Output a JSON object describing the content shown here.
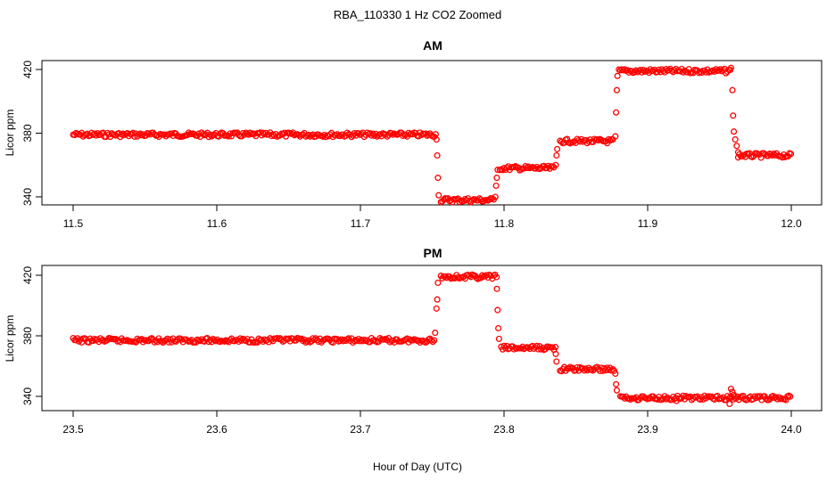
{
  "figure": {
    "title": "RBA_110330  1 Hz CO2 Zoomed",
    "xlabel": "Hour of Day (UTC)"
  },
  "chart_data": [
    {
      "type": "scatter",
      "title": "AM",
      "ylabel": "Licor ppm",
      "xlabel": "Hour of Day (UTC)",
      "xlim": [
        11.5,
        12.0
      ],
      "ylim": [
        334,
        424
      ],
      "xticks": [
        11.5,
        11.6,
        11.7,
        11.8,
        11.9,
        12.0
      ],
      "xtick_labels": [
        "11.5",
        "11.6",
        "11.7",
        "11.8",
        "11.9",
        "12.0"
      ],
      "yticks": [
        340,
        380,
        420
      ],
      "ytick_labels": [
        "340",
        "380",
        "420"
      ],
      "grid": false,
      "marker": "open-circle",
      "color": "#ff0000",
      "segments": [
        {
          "x0": 11.5,
          "x1": 11.753,
          "y": 379
        },
        {
          "x0": 11.756,
          "x1": 11.793,
          "y": 338
        },
        {
          "x0": 11.797,
          "x1": 11.835,
          "y": 358
        },
        {
          "x0": 11.839,
          "x1": 11.876,
          "y": 375
        },
        {
          "x0": 11.88,
          "x1": 11.958,
          "y": 419
        },
        {
          "x0": 11.963,
          "x1": 12.0,
          "y": 366
        }
      ],
      "transition_points": [
        {
          "x": 11.753,
          "y": 376
        },
        {
          "x": 11.7535,
          "y": 366
        },
        {
          "x": 11.754,
          "y": 352
        },
        {
          "x": 11.7545,
          "y": 341
        },
        {
          "x": 11.794,
          "y": 340
        },
        {
          "x": 11.7945,
          "y": 347
        },
        {
          "x": 11.795,
          "y": 352
        },
        {
          "x": 11.7955,
          "y": 357
        },
        {
          "x": 11.836,
          "y": 360
        },
        {
          "x": 11.8365,
          "y": 366
        },
        {
          "x": 11.837,
          "y": 370
        },
        {
          "x": 11.8775,
          "y": 378
        },
        {
          "x": 11.878,
          "y": 393
        },
        {
          "x": 11.8785,
          "y": 407
        },
        {
          "x": 11.879,
          "y": 416
        },
        {
          "x": 11.958,
          "y": 421
        },
        {
          "x": 11.959,
          "y": 407
        },
        {
          "x": 11.9595,
          "y": 391
        },
        {
          "x": 11.96,
          "y": 381
        },
        {
          "x": 11.961,
          "y": 376
        },
        {
          "x": 11.962,
          "y": 372
        },
        {
          "x": 11.963,
          "y": 368
        }
      ]
    },
    {
      "type": "scatter",
      "title": "PM",
      "ylabel": "Licor ppm",
      "xlabel": "Hour of Day (UTC)",
      "xlim": [
        23.5,
        24.0
      ],
      "ylim": [
        332,
        426
      ],
      "xticks": [
        23.5,
        23.6,
        23.7,
        23.8,
        23.9,
        24.0
      ],
      "xtick_labels": [
        "23.5",
        "23.6",
        "23.7",
        "23.8",
        "23.9",
        "24.0"
      ],
      "yticks": [
        340,
        380,
        420
      ],
      "ytick_labels": [
        "340",
        "380",
        "420"
      ],
      "grid": false,
      "marker": "open-circle",
      "color": "#ff0000",
      "segments": [
        {
          "x0": 23.5,
          "x1": 23.752,
          "y": 377
        },
        {
          "x0": 23.756,
          "x1": 23.795,
          "y": 419
        },
        {
          "x0": 23.798,
          "x1": 23.836,
          "y": 372
        },
        {
          "x0": 23.839,
          "x1": 23.877,
          "y": 358
        },
        {
          "x0": 23.881,
          "x1": 24.0,
          "y": 339
        }
      ],
      "transition_points": [
        {
          "x": 23.752,
          "y": 382
        },
        {
          "x": 23.753,
          "y": 398
        },
        {
          "x": 23.7535,
          "y": 404
        },
        {
          "x": 23.754,
          "y": 415
        },
        {
          "x": 23.795,
          "y": 411
        },
        {
          "x": 23.7955,
          "y": 397
        },
        {
          "x": 23.796,
          "y": 385
        },
        {
          "x": 23.7965,
          "y": 378
        },
        {
          "x": 23.836,
          "y": 368
        },
        {
          "x": 23.8365,
          "y": 363
        },
        {
          "x": 23.8775,
          "y": 355
        },
        {
          "x": 23.878,
          "y": 348
        },
        {
          "x": 23.8785,
          "y": 344
        },
        {
          "x": 23.957,
          "y": 335
        },
        {
          "x": 23.958,
          "y": 345
        },
        {
          "x": 23.959,
          "y": 343
        },
        {
          "x": 23.96,
          "y": 341
        },
        {
          "x": 23.92,
          "y": 337
        }
      ]
    }
  ]
}
